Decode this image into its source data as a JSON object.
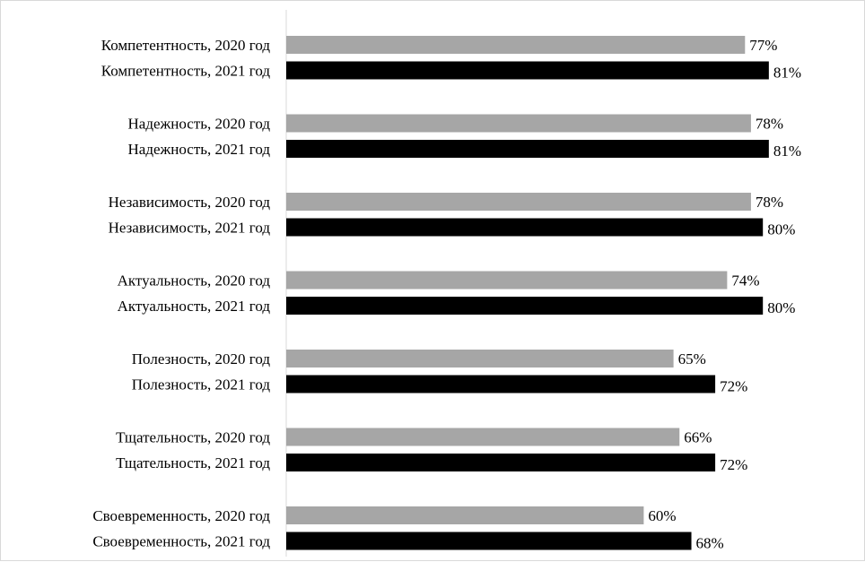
{
  "chart_data": {
    "type": "bar",
    "orientation": "horizontal",
    "categories": [
      "Компетентность, 2020 год",
      "Компетентность, 2021 год",
      "Надежность, 2020 год",
      "Надежность, 2021 год",
      "Независимость, 2020 год",
      "Независимость, 2021 год",
      "Актуальность, 2020 год",
      "Актуальность, 2021 год",
      "Полезность, 2020 год",
      "Полезность, 2021 год",
      "Тщательность, 2020 год",
      "Тщательность, 2021 год",
      "Своевременность, 2020 год",
      "Своевременность, 2021 год"
    ],
    "values": [
      77,
      81,
      78,
      81,
      78,
      80,
      74,
      80,
      65,
      72,
      66,
      72,
      60,
      68
    ],
    "value_labels": [
      "77%",
      "81%",
      "78%",
      "81%",
      "78%",
      "80%",
      "74%",
      "80%",
      "65%",
      "72%",
      "66%",
      "72%",
      "60%",
      "68%"
    ],
    "bar_colors": [
      "#a6a6a6",
      "#000000",
      "#a6a6a6",
      "#000000",
      "#a6a6a6",
      "#000000",
      "#a6a6a6",
      "#000000",
      "#a6a6a6",
      "#000000",
      "#a6a6a6",
      "#000000",
      "#a6a6a6",
      "#000000"
    ],
    "xlim": [
      0,
      100
    ],
    "grid": false,
    "legend": "none",
    "title": "",
    "xlabel": "",
    "ylabel": ""
  }
}
